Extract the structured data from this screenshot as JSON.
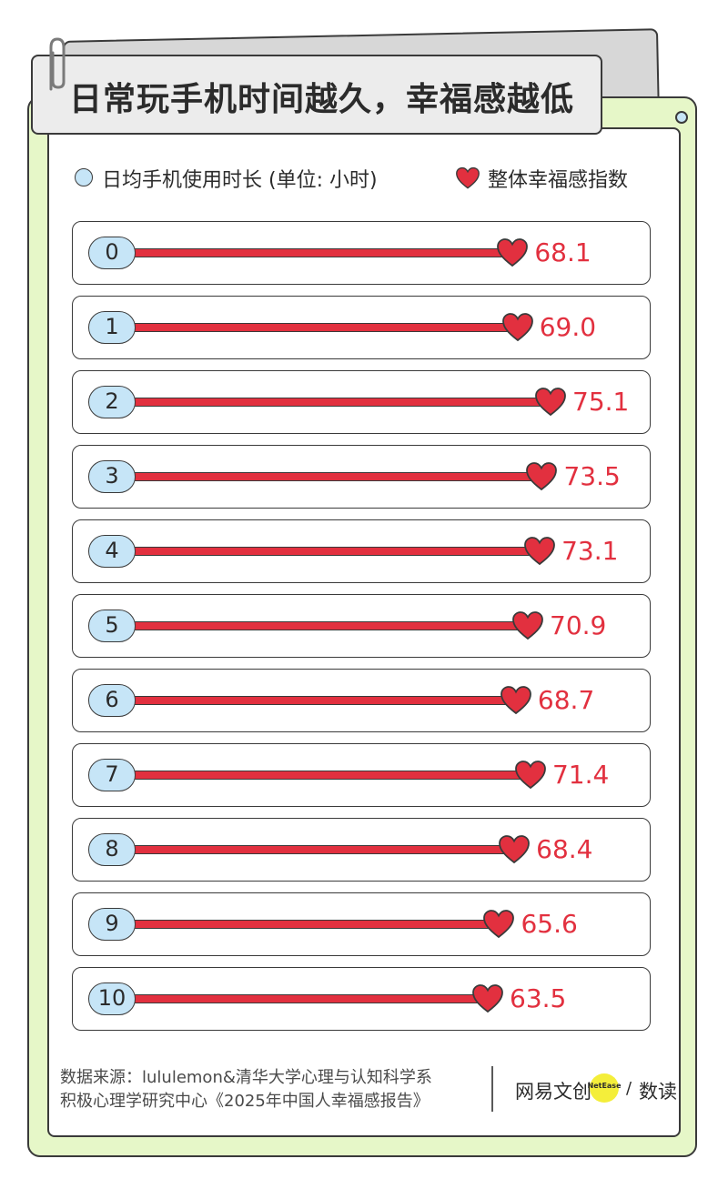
{
  "title": "日常玩手机时间越久，幸福感越低",
  "legend": {
    "hours_label": "日均手机使用时长 (单位: 小时)",
    "index_label": "整体幸福感指数"
  },
  "colors": {
    "bar": "#e2303f",
    "pill": "#c6e5f7",
    "frame": "#e6f7c8",
    "title_card": "#ececec"
  },
  "chart_data": {
    "type": "bar",
    "orientation": "horizontal",
    "categories": [
      "0",
      "1",
      "2",
      "3",
      "4",
      "5",
      "6",
      "7",
      "8",
      "9",
      "10"
    ],
    "series": [
      {
        "name": "整体幸福感指数",
        "values": [
          68.1,
          69.0,
          75.1,
          73.5,
          73.1,
          70.9,
          68.7,
          71.4,
          68.4,
          65.6,
          63.5
        ]
      }
    ],
    "value_labels": [
      "68.1",
      "69.0",
      "75.1",
      "73.5",
      "73.1",
      "70.9",
      "68.7",
      "71.4",
      "68.4",
      "65.6",
      "63.5"
    ]
  },
  "footer": {
    "source_line1": "数据来源：lululemon&清华大学心理与认知科学系",
    "source_line2": "积极心理学研究中心《2025年中国人幸福感报告》",
    "brand_cn": "网易文创",
    "brand_en": "NetEase",
    "brand_slash": "/",
    "brand_shudu": "数读"
  }
}
